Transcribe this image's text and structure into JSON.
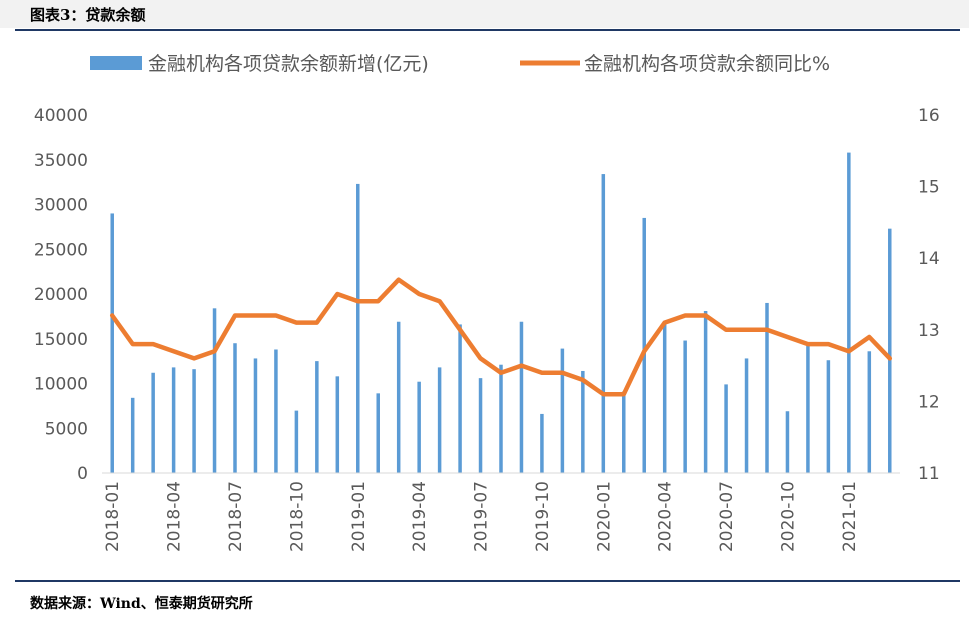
{
  "figure": {
    "title": "图表3：贷款余额",
    "source": "数据来源：Wind、恒泰期货研究所"
  },
  "chart_data": {
    "type": "bar+line",
    "x": [
      "2018-01",
      "2018-02",
      "2018-03",
      "2018-04",
      "2018-05",
      "2018-06",
      "2018-07",
      "2018-08",
      "2018-09",
      "2018-10",
      "2018-11",
      "2018-12",
      "2019-01",
      "2019-02",
      "2019-03",
      "2019-04",
      "2019-05",
      "2019-06",
      "2019-07",
      "2019-08",
      "2019-09",
      "2019-10",
      "2019-11",
      "2019-12",
      "2020-01",
      "2020-02",
      "2020-03",
      "2020-04",
      "2020-05",
      "2020-06",
      "2020-07",
      "2020-08",
      "2020-09",
      "2020-10",
      "2020-11",
      "2020-12",
      "2021-01",
      "2021-02",
      "2021-03"
    ],
    "x_tick_labels": [
      "2018-01",
      "2018-04",
      "2018-07",
      "2018-10",
      "2019-01",
      "2019-04",
      "2019-07",
      "2019-10",
      "2020-01",
      "2020-04",
      "2020-07",
      "2020-10",
      "2021-01"
    ],
    "series": [
      {
        "name": "金融机构各项贷款余额新增(亿元)",
        "type": "bar",
        "axis": "left",
        "color": "#5b9bd5",
        "values": [
          29000,
          8400,
          11200,
          11800,
          11600,
          18400,
          14500,
          12800,
          13800,
          6970,
          12500,
          10800,
          32300,
          8900,
          16900,
          10200,
          11800,
          16600,
          10600,
          12100,
          16900,
          6600,
          13900,
          11400,
          33400,
          9100,
          28500,
          17000,
          14800,
          18100,
          9900,
          12800,
          19000,
          6900,
          14300,
          12600,
          35800,
          13600,
          27300
        ]
      },
      {
        "name": "金融机构各项贷款余额同比%",
        "type": "line",
        "axis": "right",
        "color": "#ed7d31",
        "values": [
          13.2,
          12.8,
          12.8,
          12.7,
          12.6,
          12.7,
          13.2,
          13.2,
          13.2,
          13.1,
          13.1,
          13.5,
          13.4,
          13.4,
          13.7,
          13.5,
          13.4,
          13.0,
          12.6,
          12.4,
          12.5,
          12.4,
          12.4,
          12.3,
          12.1,
          12.1,
          12.7,
          13.1,
          13.2,
          13.2,
          13.0,
          13.0,
          13.0,
          12.9,
          12.8,
          12.8,
          12.7,
          12.9,
          12.6
        ]
      }
    ],
    "y_left": {
      "range": [
        0,
        40000
      ],
      "ticks": [
        "0",
        "5000",
        "10000",
        "15000",
        "20000",
        "25000",
        "30000",
        "35000",
        "40000"
      ]
    },
    "y_right": {
      "range": [
        11,
        16
      ],
      "ticks": [
        "11",
        "12",
        "13",
        "14",
        "15",
        "16"
      ]
    },
    "grid": false,
    "legend": "top"
  }
}
